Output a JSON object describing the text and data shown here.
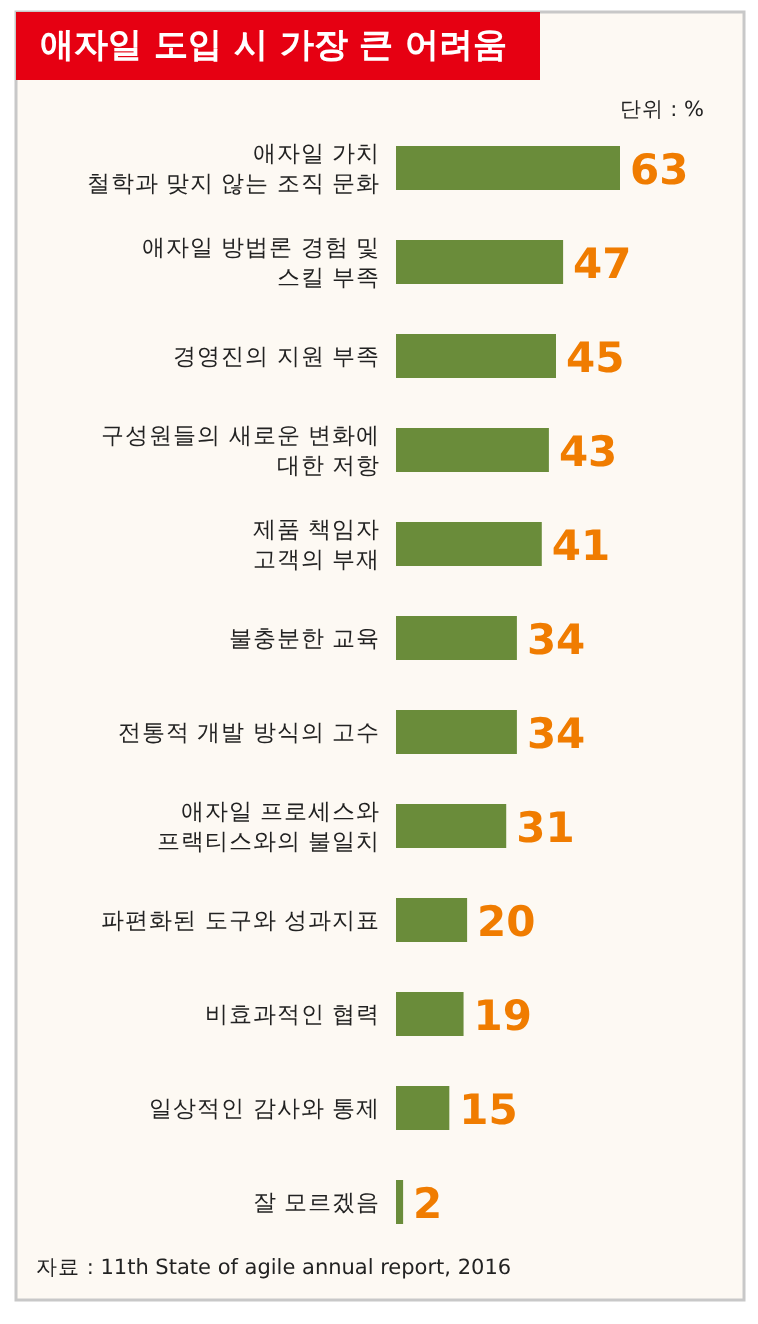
{
  "chart_data": {
    "type": "bar",
    "orientation": "horizontal",
    "data_labels": true,
    "title": "애자일 도입 시 가장 큰 어려움",
    "categories": [
      "애자일 가치\n철학과 맞지 않는 조직 문화",
      "애자일 방법론 경험 및\n스킬 부족",
      "경영진의 지원 부족",
      "구성원들의 새로운 변화에\n대한 저항",
      "제품 책임자\n고객의 부재",
      "불충분한 교육",
      "전통적 개발 방식의 고수",
      "애자일 프로세스와\n프랙티스와의 불일치",
      "파편화된 도구와 성과지표",
      "비효과적인 협력",
      "일상적인 감사와 통제",
      "잘 모르겠음"
    ],
    "values": [
      63,
      47,
      45,
      43,
      41,
      34,
      34,
      31,
      20,
      19,
      15,
      2
    ],
    "color": "#6a8c3a",
    "annotations": [
      "단위 : %",
      "자료 : 11th State of agile annual report, 2016"
    ]
  }
}
